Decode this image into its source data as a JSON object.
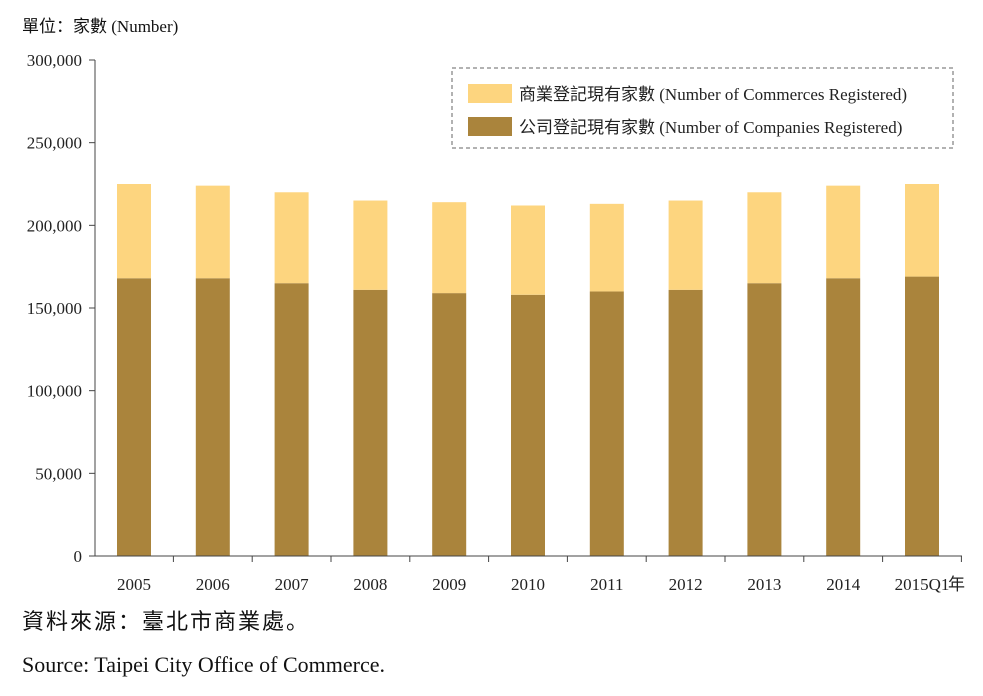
{
  "unit_label": "單位：家數 (Number)",
  "source_zh": "資料來源：臺北市商業處。",
  "source_en": "Source: Taipei City Office of Commerce.",
  "chart_data": {
    "type": "bar",
    "stacked": true,
    "categories": [
      "2005",
      "2006",
      "2007",
      "2008",
      "2009",
      "2010",
      "2011",
      "2012",
      "2013",
      "2014",
      "2015Q1"
    ],
    "x_suffix": "年",
    "ylim": [
      0,
      300000
    ],
    "yticks": [
      0,
      50000,
      100000,
      150000,
      200000,
      250000,
      300000
    ],
    "ytick_labels": [
      "0",
      "50,000",
      "100,000",
      "150,000",
      "200,000",
      "250,000",
      "300,000"
    ],
    "grid": false,
    "legend_position": "top-right",
    "colors": {
      "companies": "#aa843c",
      "commerces": "#fdd57f"
    },
    "series": [
      {
        "name": "公司登記現有家數 (Number of Companies Registered)",
        "values": [
          168000,
          168000,
          165000,
          161000,
          159000,
          158000,
          160000,
          161000,
          165000,
          168000,
          169000
        ]
      },
      {
        "name": "商業登記現有家數 (Number of Commerces Registered)",
        "values": [
          57000,
          56000,
          55000,
          54000,
          55000,
          54000,
          53000,
          54000,
          55000,
          56000,
          56000
        ]
      }
    ],
    "legend_order": [
      1,
      0
    ]
  }
}
